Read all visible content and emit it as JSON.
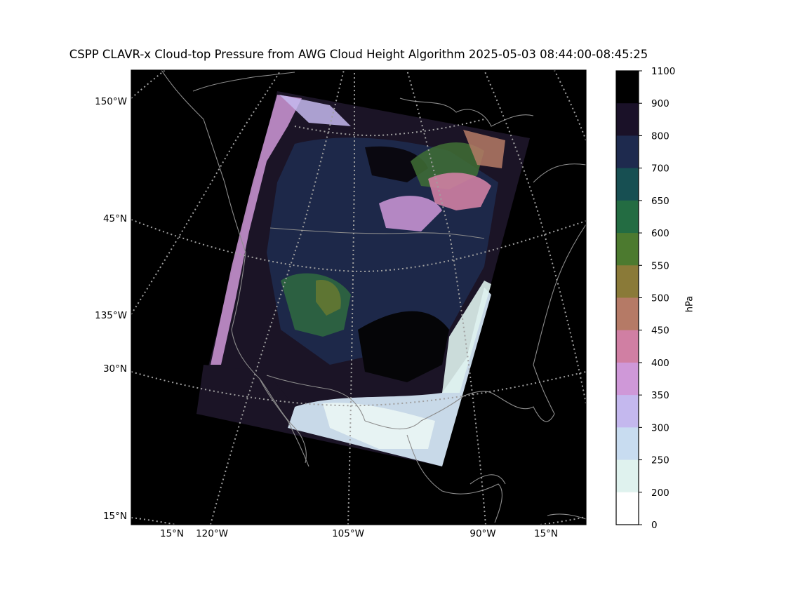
{
  "title": "CSPP CLAVR-x Cloud-top Pressure from AWG Cloud Height Algorithm 2025-05-03 08:44:00-08:45:25",
  "colorbar": {
    "label": "hPa",
    "ticks": [
      "1100",
      "900",
      "800",
      "700",
      "650",
      "600",
      "550",
      "500",
      "450",
      "400",
      "350",
      "300",
      "250",
      "200",
      "0"
    ],
    "colors": [
      "#000000",
      "#1a1128",
      "#1e2a4e",
      "#174f52",
      "#236c42",
      "#4c7a2f",
      "#8a7a38",
      "#b57a66",
      "#d07fa3",
      "#cf98d8",
      "#c4b8ee",
      "#c8dcf0",
      "#dff2ee",
      "#ffffff"
    ]
  },
  "map_labels": {
    "left": [
      "150°W",
      "45°N",
      "135°W",
      "30°N",
      "15°N"
    ],
    "bottom": [
      "15°N",
      "120°W",
      "105°W",
      "90°W",
      "15°N"
    ]
  },
  "style": {
    "background": "#000000",
    "coastline": "#8c8c8c",
    "gridline": "#a0a0a0"
  }
}
